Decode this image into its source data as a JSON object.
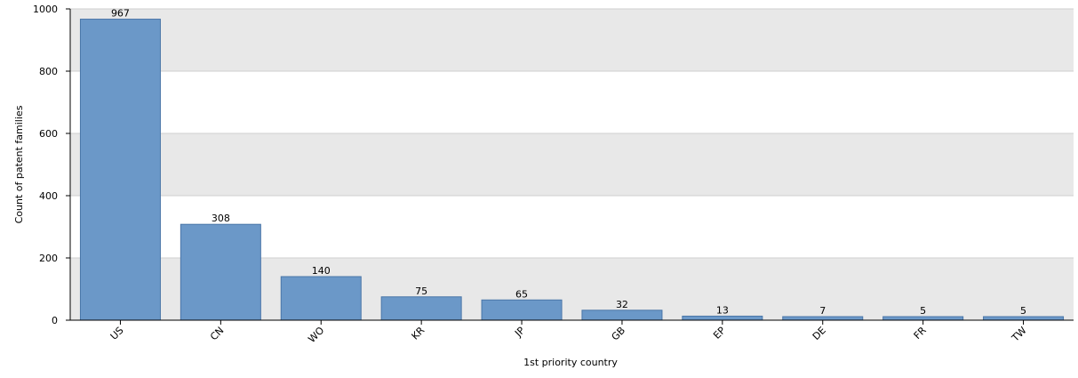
{
  "chart_data": {
    "type": "bar",
    "title": "",
    "xlabel": "1st priority country",
    "ylabel": "Count of patent families",
    "categories": [
      "US",
      "CN",
      "WO",
      "KR",
      "JP",
      "GB",
      "EP",
      "DE",
      "FR",
      "TW"
    ],
    "values": [
      967,
      308,
      140,
      75,
      65,
      32,
      13,
      7,
      5,
      5
    ],
    "data_labels": [
      "967",
      "308",
      "140",
      "75",
      "65",
      "32",
      "13",
      "7",
      "5",
      "5"
    ],
    "ylim": [
      0,
      1000
    ],
    "yticks": [
      0,
      200,
      400,
      600,
      800,
      1000
    ],
    "ytick_labels": [
      "0",
      "200",
      "400",
      "600",
      "800",
      "1000"
    ],
    "grid": true,
    "grid_style": "alternating bands",
    "legend": "none",
    "colors": {
      "bar_fill": "#6b98c8",
      "bar_stroke": "#4a76a8",
      "band_fill": "#e8e8e8",
      "axis": "#000000",
      "grid_line": "#cfcfcf"
    }
  }
}
